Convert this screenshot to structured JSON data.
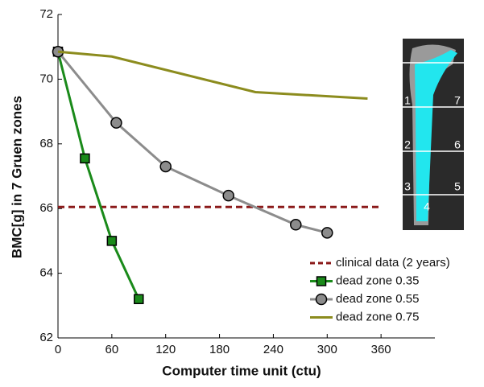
{
  "chart_data": {
    "type": "line",
    "xlabel": "Computer time unit (ctu)",
    "ylabel": "BMC[g] in 7 Gruen zones",
    "xlim": [
      0,
      420
    ],
    "xticks": [
      0,
      60,
      120,
      180,
      240,
      300,
      360
    ],
    "ylim": [
      62,
      72
    ],
    "yticks": [
      62,
      64,
      66,
      68,
      70,
      72
    ],
    "reference": {
      "name": "clinical data (2 years)",
      "color": "#8b1a1a",
      "value": 66.05
    },
    "series": [
      {
        "name": "dead zone 0.35",
        "color": "#1a8a1a",
        "marker": "square",
        "x": [
          0,
          30,
          60,
          90
        ],
        "values": [
          70.85,
          67.55,
          65.0,
          63.2
        ]
      },
      {
        "name": "dead zone 0.55",
        "color": "#8c8c8c",
        "marker": "circle",
        "x": [
          0,
          65,
          120,
          190,
          265,
          300
        ],
        "values": [
          70.85,
          68.65,
          67.3,
          66.4,
          65.5,
          65.25
        ]
      },
      {
        "name": "dead zone 0.75",
        "color": "#8c8c1e",
        "marker": "none",
        "x": [
          0,
          60,
          220,
          345
        ],
        "values": [
          70.85,
          70.7,
          69.6,
          69.4
        ]
      }
    ],
    "legend": "lower right",
    "inset_labels": [
      "1",
      "2",
      "3",
      "4",
      "5",
      "6",
      "7"
    ]
  }
}
